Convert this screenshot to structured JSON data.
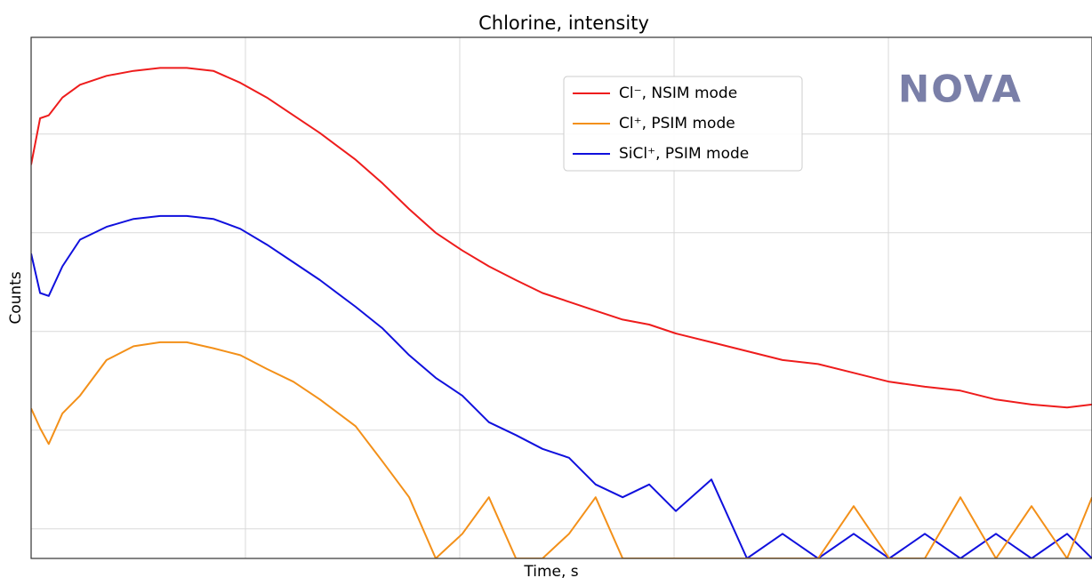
{
  "chart_data": {
    "type": "line",
    "title": "Chlorine, intensity",
    "x_label": "Time, s",
    "y_label": "Counts",
    "logo": "NOVA",
    "x": [
      0,
      2.1,
      4.1,
      7.3,
      11.4,
      17.6,
      23.9,
      30.1,
      36.3,
      42.5,
      48.8,
      55.0,
      61.2,
      67.4,
      75.7,
      82.0,
      88.2,
      94.4,
      100.6,
      106.8,
      113.1,
      119.3,
      125.5,
      131.7,
      138.0,
      144.2,
      150.4,
      158.7,
      167.0,
      175.3,
      183.6,
      191.9,
      200.2,
      208.5,
      216.8,
      225.1,
      233.4,
      241.7,
      247.5
    ],
    "series": [
      {
        "name": "Cl⁻, NSIM mode",
        "color": "#ee1c1c",
        "values": [
          3.69,
          4.16,
          4.19,
          4.37,
          4.5,
          4.59,
          4.64,
          4.67,
          4.67,
          4.64,
          4.52,
          4.37,
          4.19,
          4.01,
          3.74,
          3.5,
          3.24,
          3.0,
          2.82,
          2.66,
          2.52,
          2.39,
          2.3,
          2.21,
          2.12,
          2.07,
          1.98,
          1.89,
          1.8,
          1.71,
          1.67,
          1.58,
          1.49,
          1.44,
          1.4,
          1.31,
          1.26,
          1.23,
          1.26
        ]
      },
      {
        "name": "Cl⁺, PSIM mode",
        "color": "#f39019",
        "values": [
          1.22,
          1.02,
          0.86,
          1.17,
          1.35,
          1.71,
          1.85,
          1.89,
          1.89,
          1.83,
          1.76,
          1.62,
          1.49,
          1.31,
          1.04,
          0.68,
          0.32,
          -0.3,
          -0.05,
          0.32,
          -0.3,
          -0.3,
          -0.05,
          0.32,
          -0.3,
          -0.3,
          -0.3,
          -0.3,
          -0.3,
          -0.3,
          -0.3,
          0.23,
          -0.3,
          -0.3,
          0.32,
          -0.3,
          0.23,
          -0.3,
          0.32
        ]
      },
      {
        "name": "SiCl⁺, PSIM mode",
        "color": "#1010dd",
        "values": [
          2.79,
          2.39,
          2.36,
          2.66,
          2.93,
          3.06,
          3.14,
          3.17,
          3.17,
          3.14,
          3.04,
          2.88,
          2.7,
          2.52,
          2.25,
          2.03,
          1.76,
          1.53,
          1.35,
          1.08,
          0.95,
          0.81,
          0.72,
          0.45,
          0.32,
          0.45,
          0.18,
          0.5,
          -0.3,
          -0.05,
          -0.3,
          -0.05,
          -0.3,
          -0.05,
          -0.3,
          -0.05,
          -0.3,
          -0.05,
          -0.3
        ]
      }
    ],
    "xlim": [
      0,
      247.5
    ],
    "xticks": [
      50,
      100,
      150,
      200
    ],
    "ylim": [
      -0.3,
      4.98
    ],
    "yticks": [
      0,
      1,
      2,
      3,
      4
    ],
    "grid": true,
    "tick_labels": false,
    "legend": "upper center"
  }
}
